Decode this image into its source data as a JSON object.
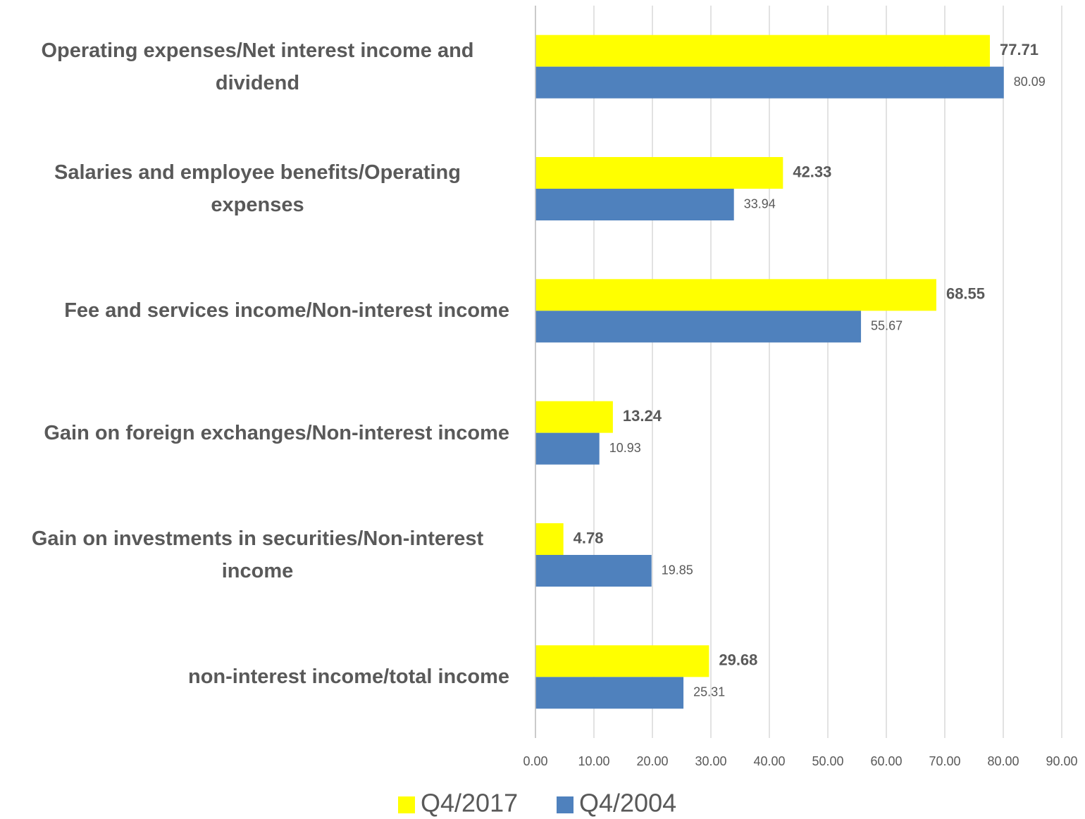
{
  "chart_data": {
    "type": "hbar",
    "categories": [
      "Operating expenses/Net interest income and dividend",
      "Salaries and employee benefits/Operating expenses",
      "Fee and services income/Non-interest income",
      "Gain on foreign exchanges/Non-interest income",
      "Gain on investments in securities/Non-interest income",
      "non-interest income/total income"
    ],
    "series": [
      {
        "name": "Q4/2017",
        "color": "#ffff00",
        "values": [
          77.71,
          42.33,
          68.55,
          13.24,
          4.78,
          29.68
        ]
      },
      {
        "name": "Q4/2004",
        "color": "#4f81bd",
        "values": [
          80.09,
          33.94,
          55.67,
          10.93,
          19.85,
          25.31
        ]
      }
    ],
    "xlim": [
      0,
      90
    ],
    "xticks": [
      {
        "value": 0,
        "label": "0.00"
      },
      {
        "value": 10,
        "label": "10.00"
      },
      {
        "value": 20,
        "label": "20.00"
      },
      {
        "value": 30,
        "label": "30.00"
      },
      {
        "value": 40,
        "label": "40.00"
      },
      {
        "value": 50,
        "label": "50.00"
      },
      {
        "value": 60,
        "label": "60.00"
      },
      {
        "value": 70,
        "label": "70.00"
      },
      {
        "value": 80,
        "label": "80.00"
      },
      {
        "value": 90,
        "label": "90.00"
      }
    ],
    "grid": true,
    "legend": "bottom"
  }
}
